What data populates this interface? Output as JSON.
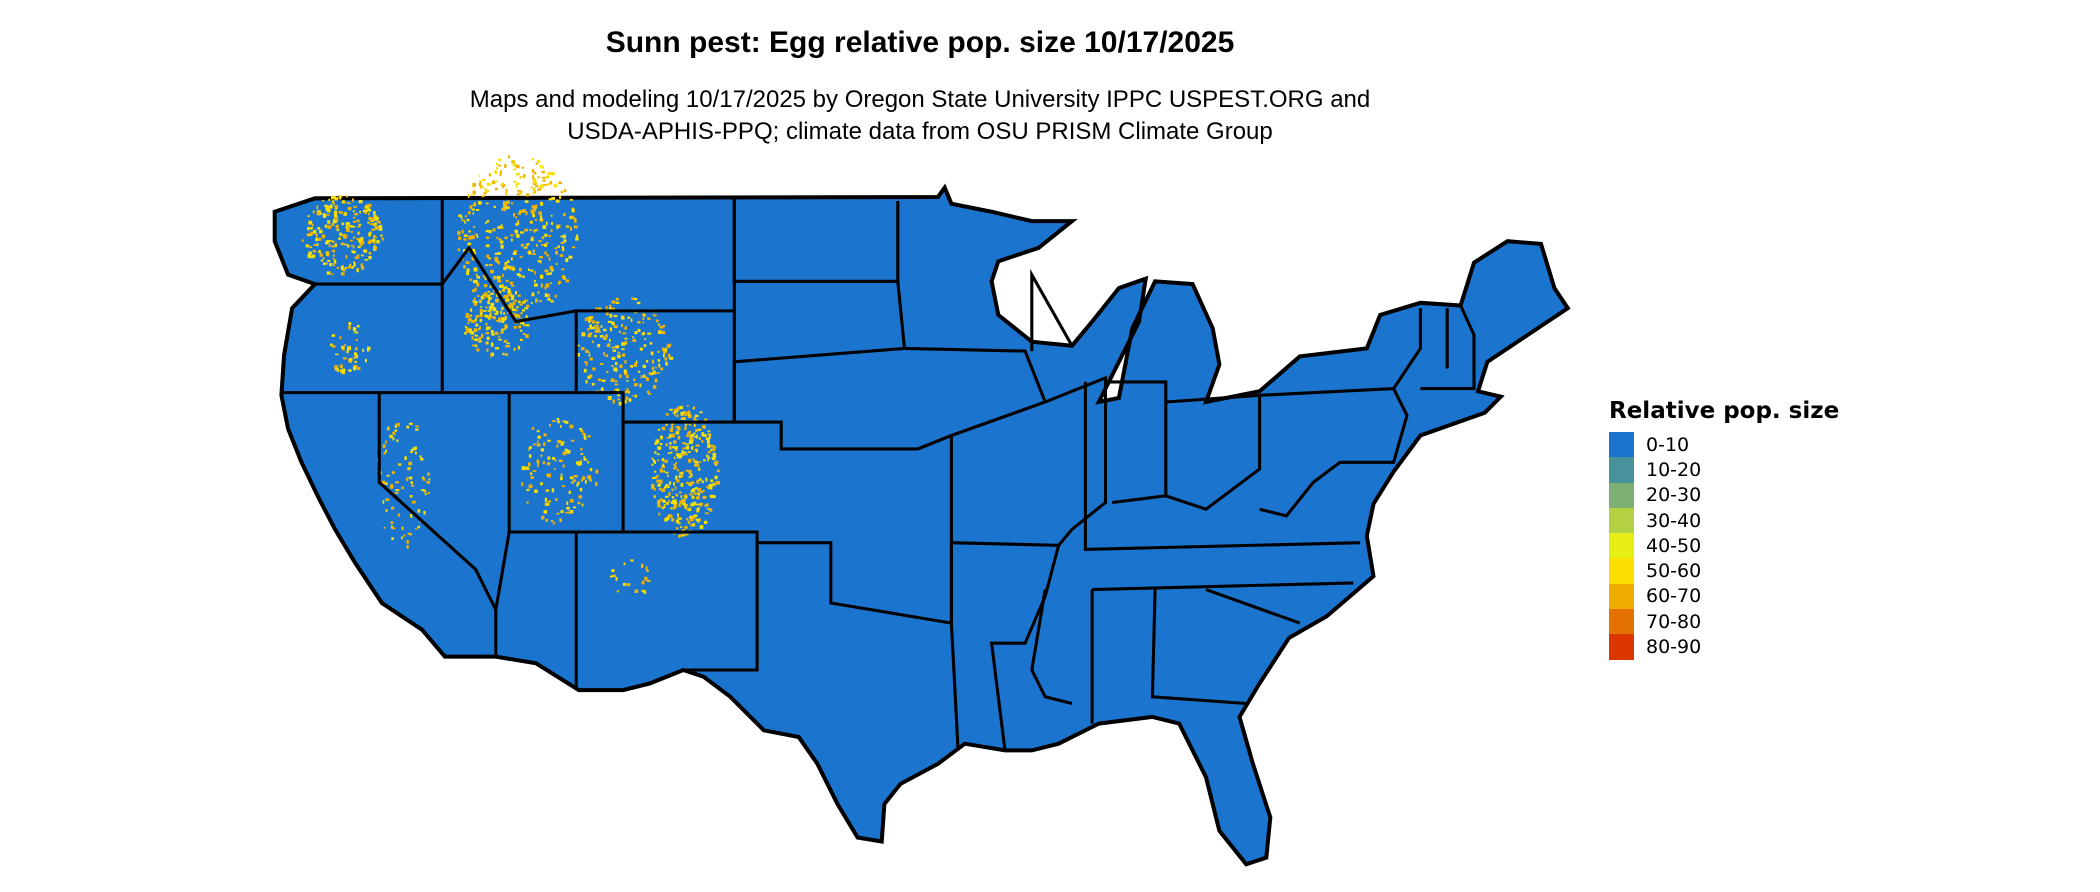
{
  "title": "Sunn pest: Egg relative pop. size 10/17/2025",
  "subtitle_line1": "Maps and modeling 10/17/2025 by Oregon State University IPPC USPEST.ORG and",
  "subtitle_line2": "USDA-APHIS-PPQ; climate data from OSU PRISM Climate Group",
  "map": {
    "region": "Contiguous United States",
    "base_color": "#1b75cf",
    "border_color": "#000000",
    "hotspot_color": "#f0b400",
    "hotspot_areas": [
      "Washington",
      "Idaho",
      "Montana",
      "Wyoming",
      "Colorado",
      "Utah",
      "Nevada",
      "Oregon",
      "California"
    ]
  },
  "legend": {
    "title": "Relative pop. size",
    "items": [
      {
        "label": "0-10",
        "color": "#1b75cf"
      },
      {
        "label": "10-20",
        "color": "#48929c"
      },
      {
        "label": "20-30",
        "color": "#7fb073"
      },
      {
        "label": "30-40",
        "color": "#b3d143"
      },
      {
        "label": "40-50",
        "color": "#e5ef16"
      },
      {
        "label": "50-60",
        "color": "#f9e000"
      },
      {
        "label": "60-70",
        "color": "#efab00"
      },
      {
        "label": "70-80",
        "color": "#e47200"
      },
      {
        "label": "80-90",
        "color": "#dc3700"
      }
    ]
  }
}
